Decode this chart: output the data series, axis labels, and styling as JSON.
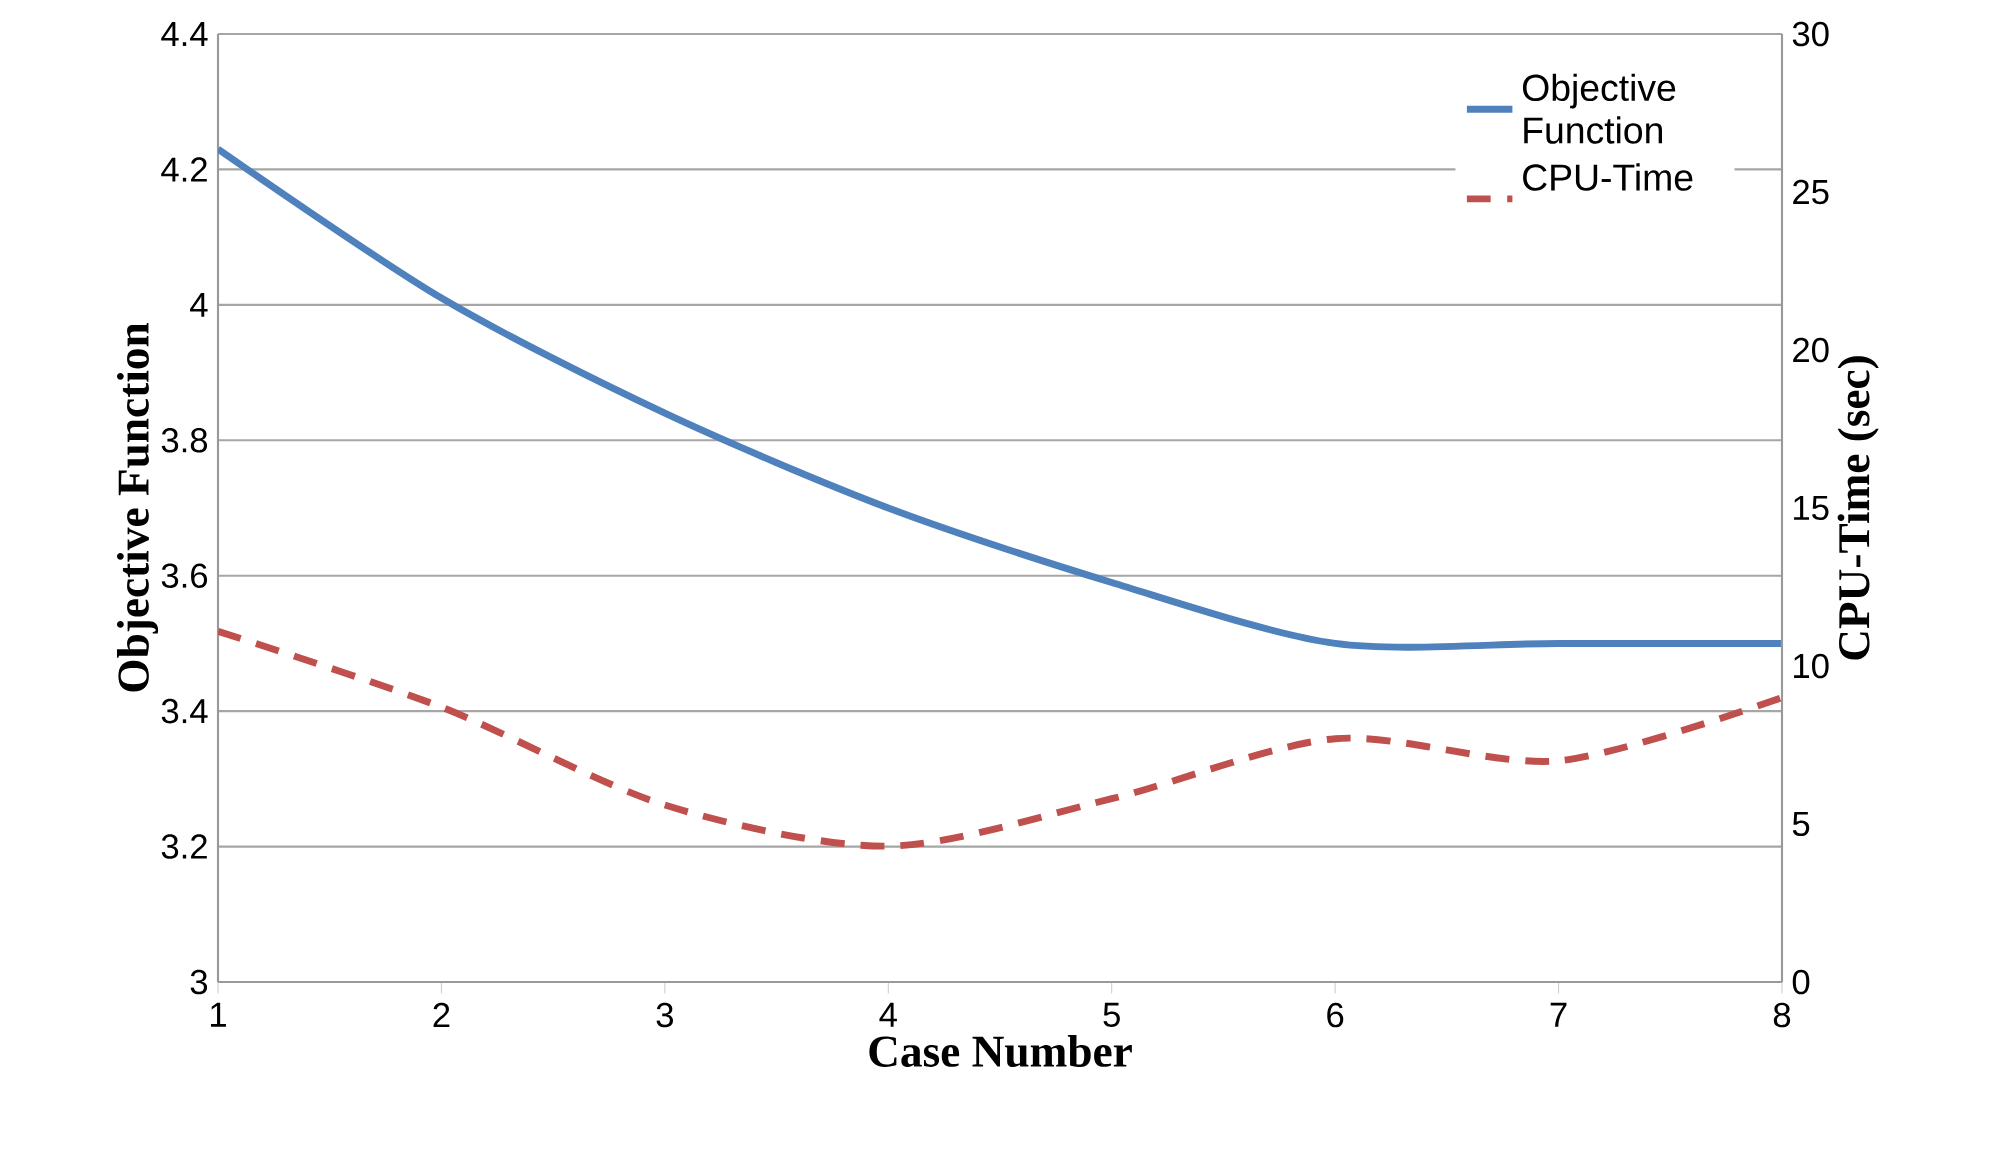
{
  "chart_data": {
    "type": "line",
    "x": [
      1,
      2,
      3,
      4,
      5,
      6,
      7,
      8
    ],
    "series": [
      {
        "name": "Objective Function",
        "color": "#4f81bd",
        "line_style": "solid",
        "values": [
          4.23,
          4.01,
          3.84,
          3.7,
          3.59,
          3.5,
          3.5,
          3.5
        ]
      },
      {
        "name": "CPU-Time",
        "color": "#c0504d",
        "line_style": "dashed",
        "axis": "y2",
        "values": [
          11.1,
          8.7,
          5.6,
          4.3,
          5.8,
          7.7,
          7.0,
          9.0
        ]
      }
    ],
    "xlim": [
      1,
      8
    ],
    "xticks": [
      1,
      2,
      3,
      4,
      5,
      6,
      7,
      8
    ],
    "ylim": [
      3,
      4.4
    ],
    "yticks": [
      3,
      3.2,
      3.4,
      3.6,
      3.8,
      4,
      4.2,
      4.4
    ],
    "y2lim": [
      0,
      30
    ],
    "y2ticks": [
      0,
      5,
      10,
      15,
      20,
      25,
      30
    ],
    "xlabel": "Case Number",
    "ylabel": "Objective Function",
    "y2label": "CPU-Time (sec)",
    "grid": "y",
    "legend": "top right"
  }
}
